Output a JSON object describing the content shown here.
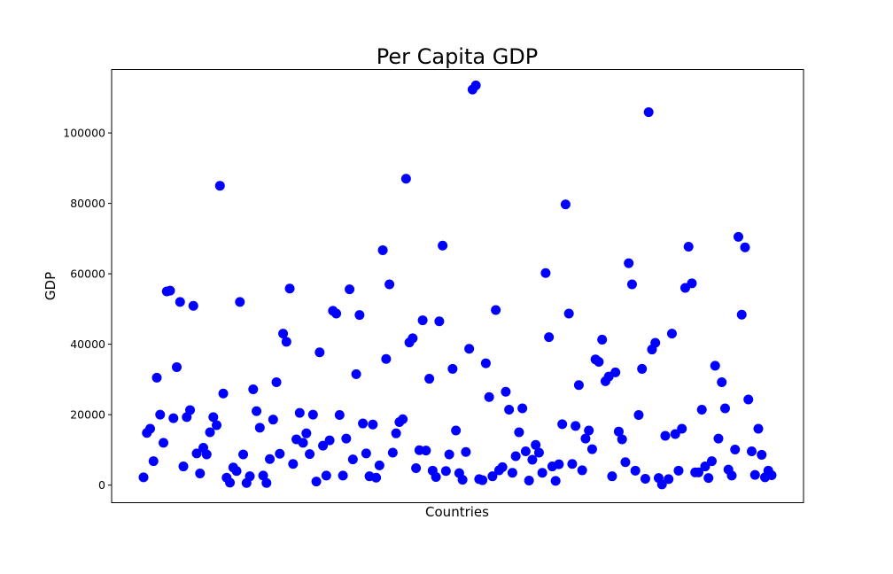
{
  "chart_data": {
    "type": "scatter",
    "title": "Per Capita GDP",
    "xlabel": "Countries",
    "ylabel": "GDP",
    "ylim": [
      -5000,
      118000
    ],
    "yticks": [
      0,
      20000,
      40000,
      60000,
      80000,
      100000
    ],
    "yticklabels": [
      "0",
      "20000",
      "40000",
      "60000",
      "80000",
      "100000"
    ],
    "xticks_shown": false,
    "grid": false,
    "marker_color": "#0000ff",
    "series": [
      {
        "values": [
          2200,
          14800,
          16000,
          6800,
          30500,
          20000,
          12000,
          55000,
          55200,
          19000,
          33500,
          52000,
          5300,
          19300,
          21300,
          50900,
          9000,
          3300,
          10600,
          8700,
          15000,
          19300,
          17000,
          85000,
          26000,
          2100,
          700,
          5000,
          4000,
          52000,
          8700,
          600,
          2500,
          27200,
          21000,
          16300,
          2700,
          600,
          7400,
          18600,
          29200,
          8900,
          43000,
          40700,
          55800,
          6000,
          13000,
          20500,
          12000,
          14700,
          8800,
          20000,
          1000,
          37700,
          11200,
          2700,
          12700,
          49500,
          48700,
          19900,
          2700,
          13200,
          55600,
          7300,
          31500,
          48300,
          17500,
          9000,
          2500,
          17200,
          2100,
          5600,
          66700,
          35800,
          57000,
          9200,
          14700,
          17900,
          18700,
          87000,
          40500,
          41700,
          4800,
          9900,
          46800,
          9800,
          30200,
          4100,
          2300,
          46500,
          68000,
          4000,
          8700,
          33000,
          15500,
          3400,
          1500,
          9400,
          38700,
          112300,
          113500,
          1700,
          1400,
          34600,
          25000,
          2500,
          49700,
          4200,
          5100,
          26500,
          21400,
          3500,
          8200,
          15000,
          21800,
          9600,
          1300,
          7200,
          11400,
          9200,
          3500,
          60200,
          42000,
          5300,
          1200,
          5900,
          17300,
          79700,
          48700,
          6000,
          16800,
          28400,
          4200,
          13200,
          15500,
          10200,
          35700,
          35000,
          41300,
          29500,
          30800,
          2500,
          32000,
          15200,
          13000,
          6500,
          63000,
          57000,
          4100,
          19900,
          33000,
          1800,
          105900,
          38500,
          40400,
          2000,
          200,
          14000,
          1700,
          43000,
          14500,
          4100,
          16000,
          56000,
          67700,
          57300,
          3600,
          3600,
          21400,
          5300,
          2000,
          6800,
          33900,
          13200,
          29200,
          21800,
          4400,
          2700,
          10100,
          70500,
          48400,
          67500,
          24300,
          9600,
          2900,
          16000,
          8600,
          2200,
          4100,
          2800
        ]
      }
    ]
  }
}
